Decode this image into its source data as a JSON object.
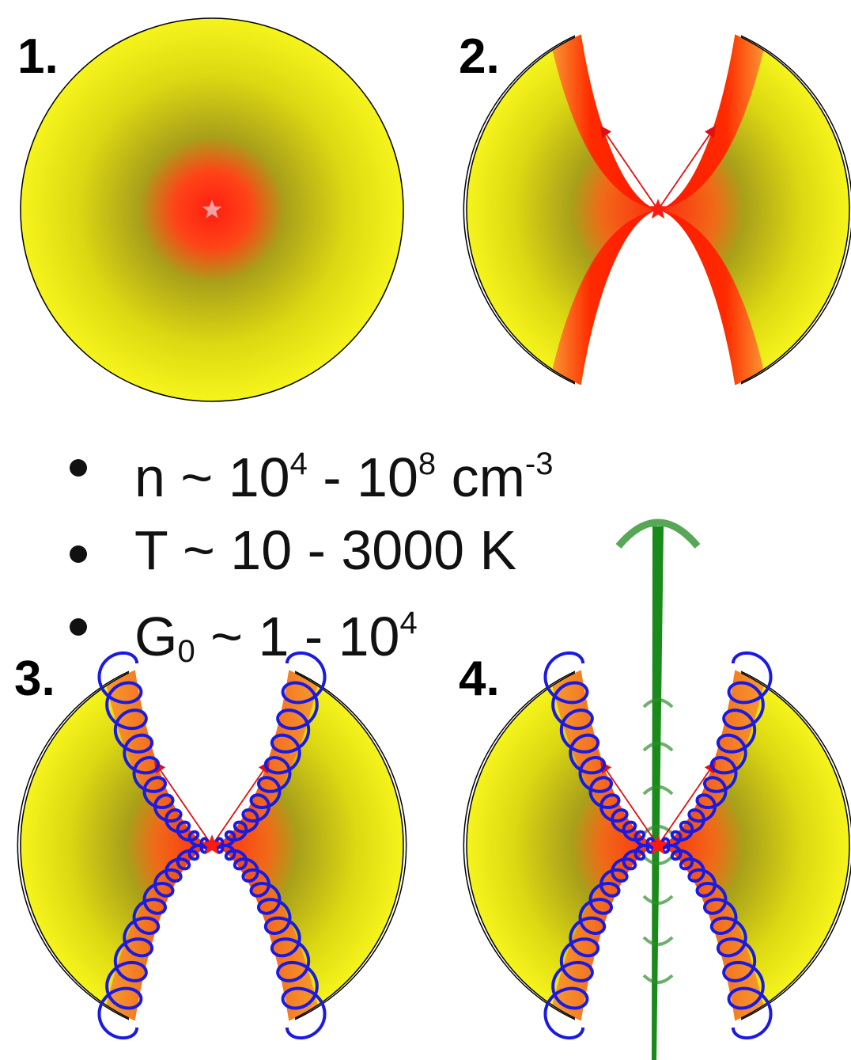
{
  "panels": [
    {
      "label": "1."
    },
    {
      "label": "2."
    },
    {
      "label": "3."
    },
    {
      "label": "4."
    }
  ],
  "bullets": [
    [
      "n ~ 10",
      "4",
      " - 10",
      "8",
      " cm",
      "-3"
    ],
    [
      "T ~ 10 - 3000 K"
    ],
    [
      "G",
      "0",
      " ~ 1 - 10",
      "4"
    ]
  ]
}
